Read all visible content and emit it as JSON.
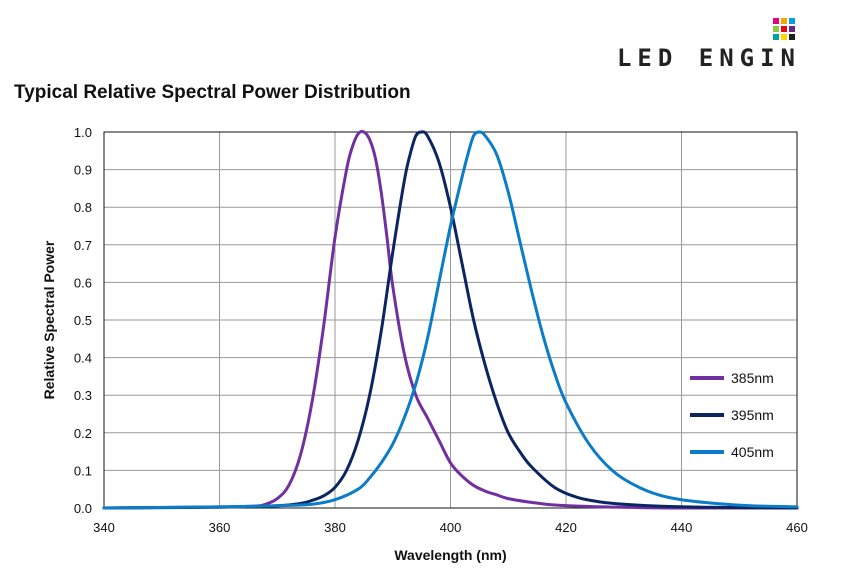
{
  "header": {
    "logo_text": "LED ENGIN",
    "title": "Typical Relative Spectral Power Distribution"
  },
  "colors": {
    "s385": "#7030A0",
    "s395": "#0B2560",
    "s405": "#0A7CC8",
    "grid": "#9a9a9a",
    "logo_dots": [
      "#E6007E",
      "#F7A600",
      "#009FE3",
      "#8DC63F",
      "#E30613",
      "#662483",
      "#00A19A",
      "#FFD500",
      "#1D1D1B"
    ]
  },
  "chart_data": {
    "type": "line",
    "title": "",
    "xlabel": "Wavelength (nm)",
    "ylabel": "Relative Spectral Power",
    "xlim": [
      340,
      460
    ],
    "ylim": [
      0,
      1.0
    ],
    "x_ticks": [
      "340",
      "360",
      "380",
      "400",
      "420",
      "440",
      "460"
    ],
    "y_ticks": [
      "0.0",
      "0.1",
      "0.2",
      "0.3",
      "0.4",
      "0.5",
      "0.6",
      "0.7",
      "0.8",
      "0.9",
      "1.0"
    ],
    "grid": true,
    "legend_position": "right",
    "series": [
      {
        "name": "385nm",
        "color": "#7030A0",
        "x": [
          340,
          360,
          366,
          368,
          370,
          372,
          374,
          376,
          378,
          380,
          382,
          383,
          384,
          385,
          386,
          387,
          388,
          389,
          390,
          392,
          394,
          396,
          398,
          400,
          402,
          404,
          406,
          408,
          410,
          414,
          418,
          424,
          430,
          440,
          460
        ],
        "y": [
          0.0,
          0.003,
          0.005,
          0.01,
          0.025,
          0.06,
          0.14,
          0.28,
          0.48,
          0.72,
          0.9,
          0.96,
          0.995,
          1.0,
          0.98,
          0.93,
          0.84,
          0.72,
          0.59,
          0.41,
          0.3,
          0.24,
          0.18,
          0.12,
          0.085,
          0.06,
          0.045,
          0.035,
          0.025,
          0.015,
          0.008,
          0.004,
          0.002,
          0.0,
          0.0
        ]
      },
      {
        "name": "395nm",
        "color": "#0B2560",
        "x": [
          340,
          360,
          370,
          374,
          376,
          378,
          380,
          382,
          384,
          386,
          388,
          390,
          392,
          393,
          394,
          395,
          396,
          398,
          400,
          402,
          404,
          406,
          408,
          410,
          412,
          414,
          418,
          422,
          426,
          430,
          436,
          444,
          460
        ],
        "y": [
          0.0,
          0.002,
          0.006,
          0.012,
          0.02,
          0.032,
          0.055,
          0.1,
          0.18,
          0.3,
          0.47,
          0.68,
          0.87,
          0.94,
          0.99,
          1.0,
          0.99,
          0.92,
          0.8,
          0.65,
          0.5,
          0.38,
          0.28,
          0.2,
          0.15,
          0.11,
          0.055,
          0.028,
          0.016,
          0.01,
          0.005,
          0.002,
          0.0
        ]
      },
      {
        "name": "405nm",
        "color": "#0A7CC8",
        "x": [
          340,
          360,
          370,
          376,
          380,
          384,
          386,
          388,
          390,
          392,
          394,
          396,
          398,
          400,
          402,
          403,
          404,
          405,
          406,
          408,
          410,
          412,
          414,
          416,
          418,
          420,
          424,
          428,
          432,
          436,
          440,
          446,
          452,
          460
        ],
        "y": [
          0.0,
          0.003,
          0.006,
          0.01,
          0.022,
          0.05,
          0.08,
          0.12,
          0.17,
          0.24,
          0.33,
          0.45,
          0.6,
          0.75,
          0.88,
          0.94,
          0.99,
          1.0,
          0.99,
          0.94,
          0.84,
          0.71,
          0.58,
          0.46,
          0.36,
          0.28,
          0.17,
          0.1,
          0.06,
          0.035,
          0.022,
          0.012,
          0.006,
          0.003
        ]
      }
    ]
  }
}
